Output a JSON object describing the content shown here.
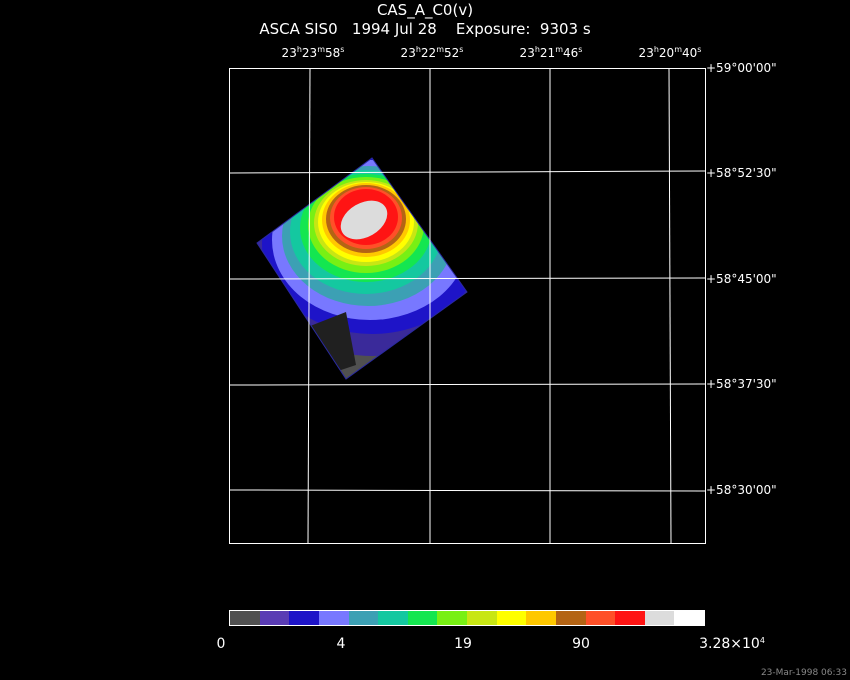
{
  "header": {
    "title": "CAS_A_C0(v)",
    "subtitle": "ASCA SIS0   1994 Jul 28    Exposure:  9303 s"
  },
  "ra_labels": [
    {
      "h": "23",
      "m": "23",
      "s": "58"
    },
    {
      "h": "23",
      "m": "22",
      "s": "52"
    },
    {
      "h": "23",
      "m": "21",
      "s": "46"
    },
    {
      "h": "23",
      "m": "20",
      "s": "40"
    }
  ],
  "dec_labels": [
    "+59°00'00\"",
    "+58°52'30\"",
    "+58°45'00\"",
    "+58°37'30\"",
    "+58°30'00\""
  ],
  "colorbar": {
    "colors": [
      "#505050",
      "#5a3cb4",
      "#1e14c8",
      "#7878ff",
      "#3ca0b4",
      "#14c8a0",
      "#14e650",
      "#78f014",
      "#c8e614",
      "#ffff00",
      "#ffc800",
      "#b46414",
      "#ff5028",
      "#ff1414",
      "#dcdcdc",
      "#ffffff"
    ],
    "labels": {
      "v0": "0",
      "v1": "4",
      "v2": "19",
      "v3": "90",
      "v4_base": "3.28×10",
      "v4_exp": "4"
    }
  },
  "timestamp": "23-Mar-1998 06:33"
}
